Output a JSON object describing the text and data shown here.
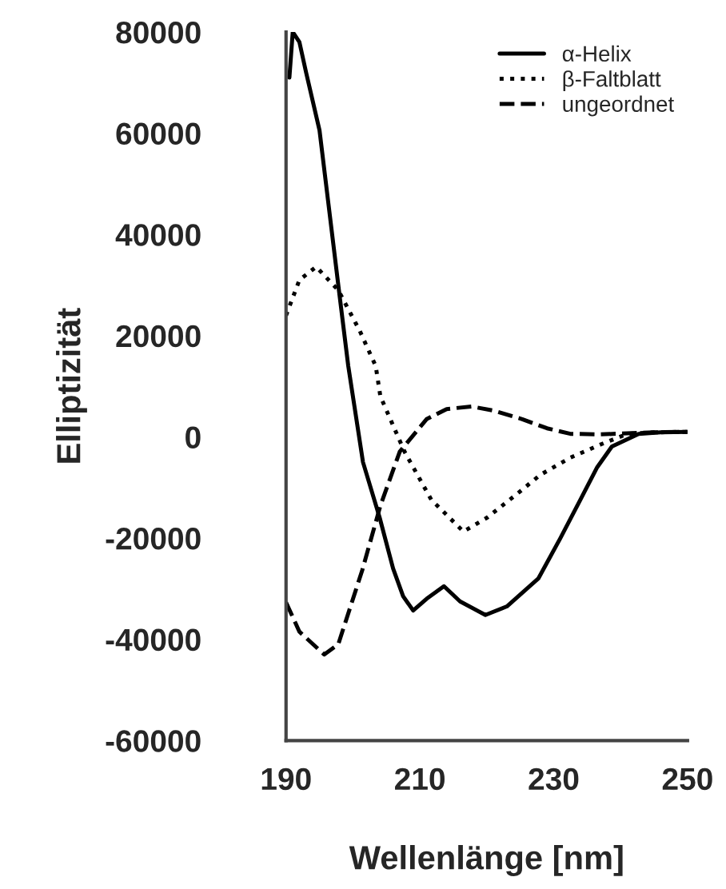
{
  "chart_data": {
    "type": "line",
    "xlabel": "Wellenlänge [nm]",
    "ylabel": "Elliptizität",
    "xlim": [
      190,
      250
    ],
    "xticks": [
      190,
      210,
      230,
      250
    ],
    "ylim": [
      -60000,
      80000
    ],
    "yticks": [
      -60000,
      -40000,
      -20000,
      0,
      20000,
      40000,
      60000,
      80000
    ],
    "grid": false,
    "legend": "top right",
    "marker": "none",
    "series": [
      {
        "name": "α-Helix",
        "color": "#000000",
        "line_style": "solid",
        "x": [
          190.5,
          191,
          192,
          193,
          195,
          197.9,
          199.3,
          201.5,
          204,
          206,
          207.5,
          209,
          211,
          213.6,
          216,
          219.8,
          223,
          227.7,
          231,
          234,
          236.5,
          238.7,
          242.7,
          246,
          250
        ],
        "values": [
          71000,
          80000,
          78000,
          72000,
          60600,
          29000,
          14000,
          -5000,
          -16000,
          -26000,
          -31500,
          -34300,
          -32000,
          -29500,
          -32500,
          -35200,
          -33500,
          -28000,
          -20000,
          -12400,
          -6000,
          -1900,
          600,
          900,
          1000
        ]
      },
      {
        "name": "β-Faltblatt",
        "color": "#000000",
        "line_style": "dotted",
        "x": [
          190,
          192,
          194.5,
          197.8,
          201,
          203.4,
          204.1,
          207.7,
          211.7,
          216.5,
          220,
          224.4,
          228,
          232.5,
          237,
          241,
          245,
          250
        ],
        "values": [
          24000,
          31000,
          33600,
          29000,
          21000,
          14000,
          8000,
          -2900,
          -12400,
          -18700,
          -16000,
          -11400,
          -7500,
          -4100,
          -1500,
          600,
          900,
          1000
        ]
      },
      {
        "name": "ungeordnet",
        "color": "#000000",
        "line_style": "dashed",
        "x": [
          190,
          192,
          195.7,
          197.8,
          201.4,
          204.1,
          207,
          211,
          214,
          217.7,
          221,
          225.3,
          229,
          232.5,
          237,
          241,
          245,
          250
        ],
        "values": [
          -32700,
          -38500,
          -43000,
          -41000,
          -26300,
          -13600,
          -2900,
          3500,
          5500,
          6000,
          5200,
          3500,
          1700,
          600,
          500,
          700,
          900,
          1000
        ]
      }
    ]
  }
}
